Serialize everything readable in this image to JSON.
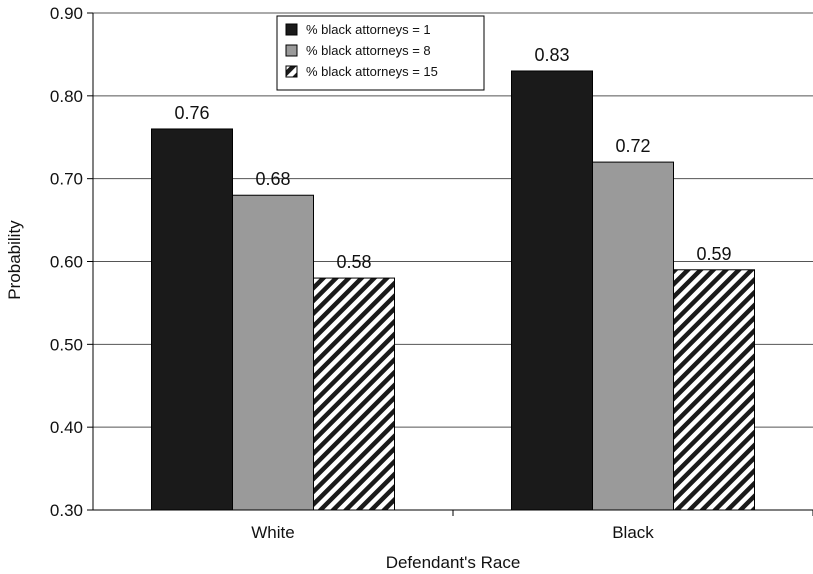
{
  "chart_data": {
    "type": "bar",
    "title": "",
    "xlabel": "Defendant's Race",
    "ylabel": "Probability",
    "categories": [
      "White",
      "Black"
    ],
    "ylim": [
      0.3,
      0.9
    ],
    "yticks": [
      "0.30",
      "0.40",
      "0.50",
      "0.60",
      "0.70",
      "0.80",
      "0.90"
    ],
    "grid": true,
    "legend_position": "top-center",
    "series": [
      {
        "name": "% black attorneys = 1",
        "values": [
          0.76,
          0.83
        ],
        "labels": [
          "0.76",
          "0.83"
        ],
        "color": "#1a1a1a",
        "fill": "solid"
      },
      {
        "name": "% black attorneys = 8",
        "values": [
          0.68,
          0.72
        ],
        "labels": [
          "0.68",
          "0.72"
        ],
        "color": "#9a9a9a",
        "fill": "solid"
      },
      {
        "name": "% black attorneys = 15",
        "values": [
          0.58,
          0.59
        ],
        "labels": [
          "0.58",
          "0.59"
        ],
        "color": "#1a1a1a",
        "fill": "diagonal-hatch"
      }
    ]
  }
}
